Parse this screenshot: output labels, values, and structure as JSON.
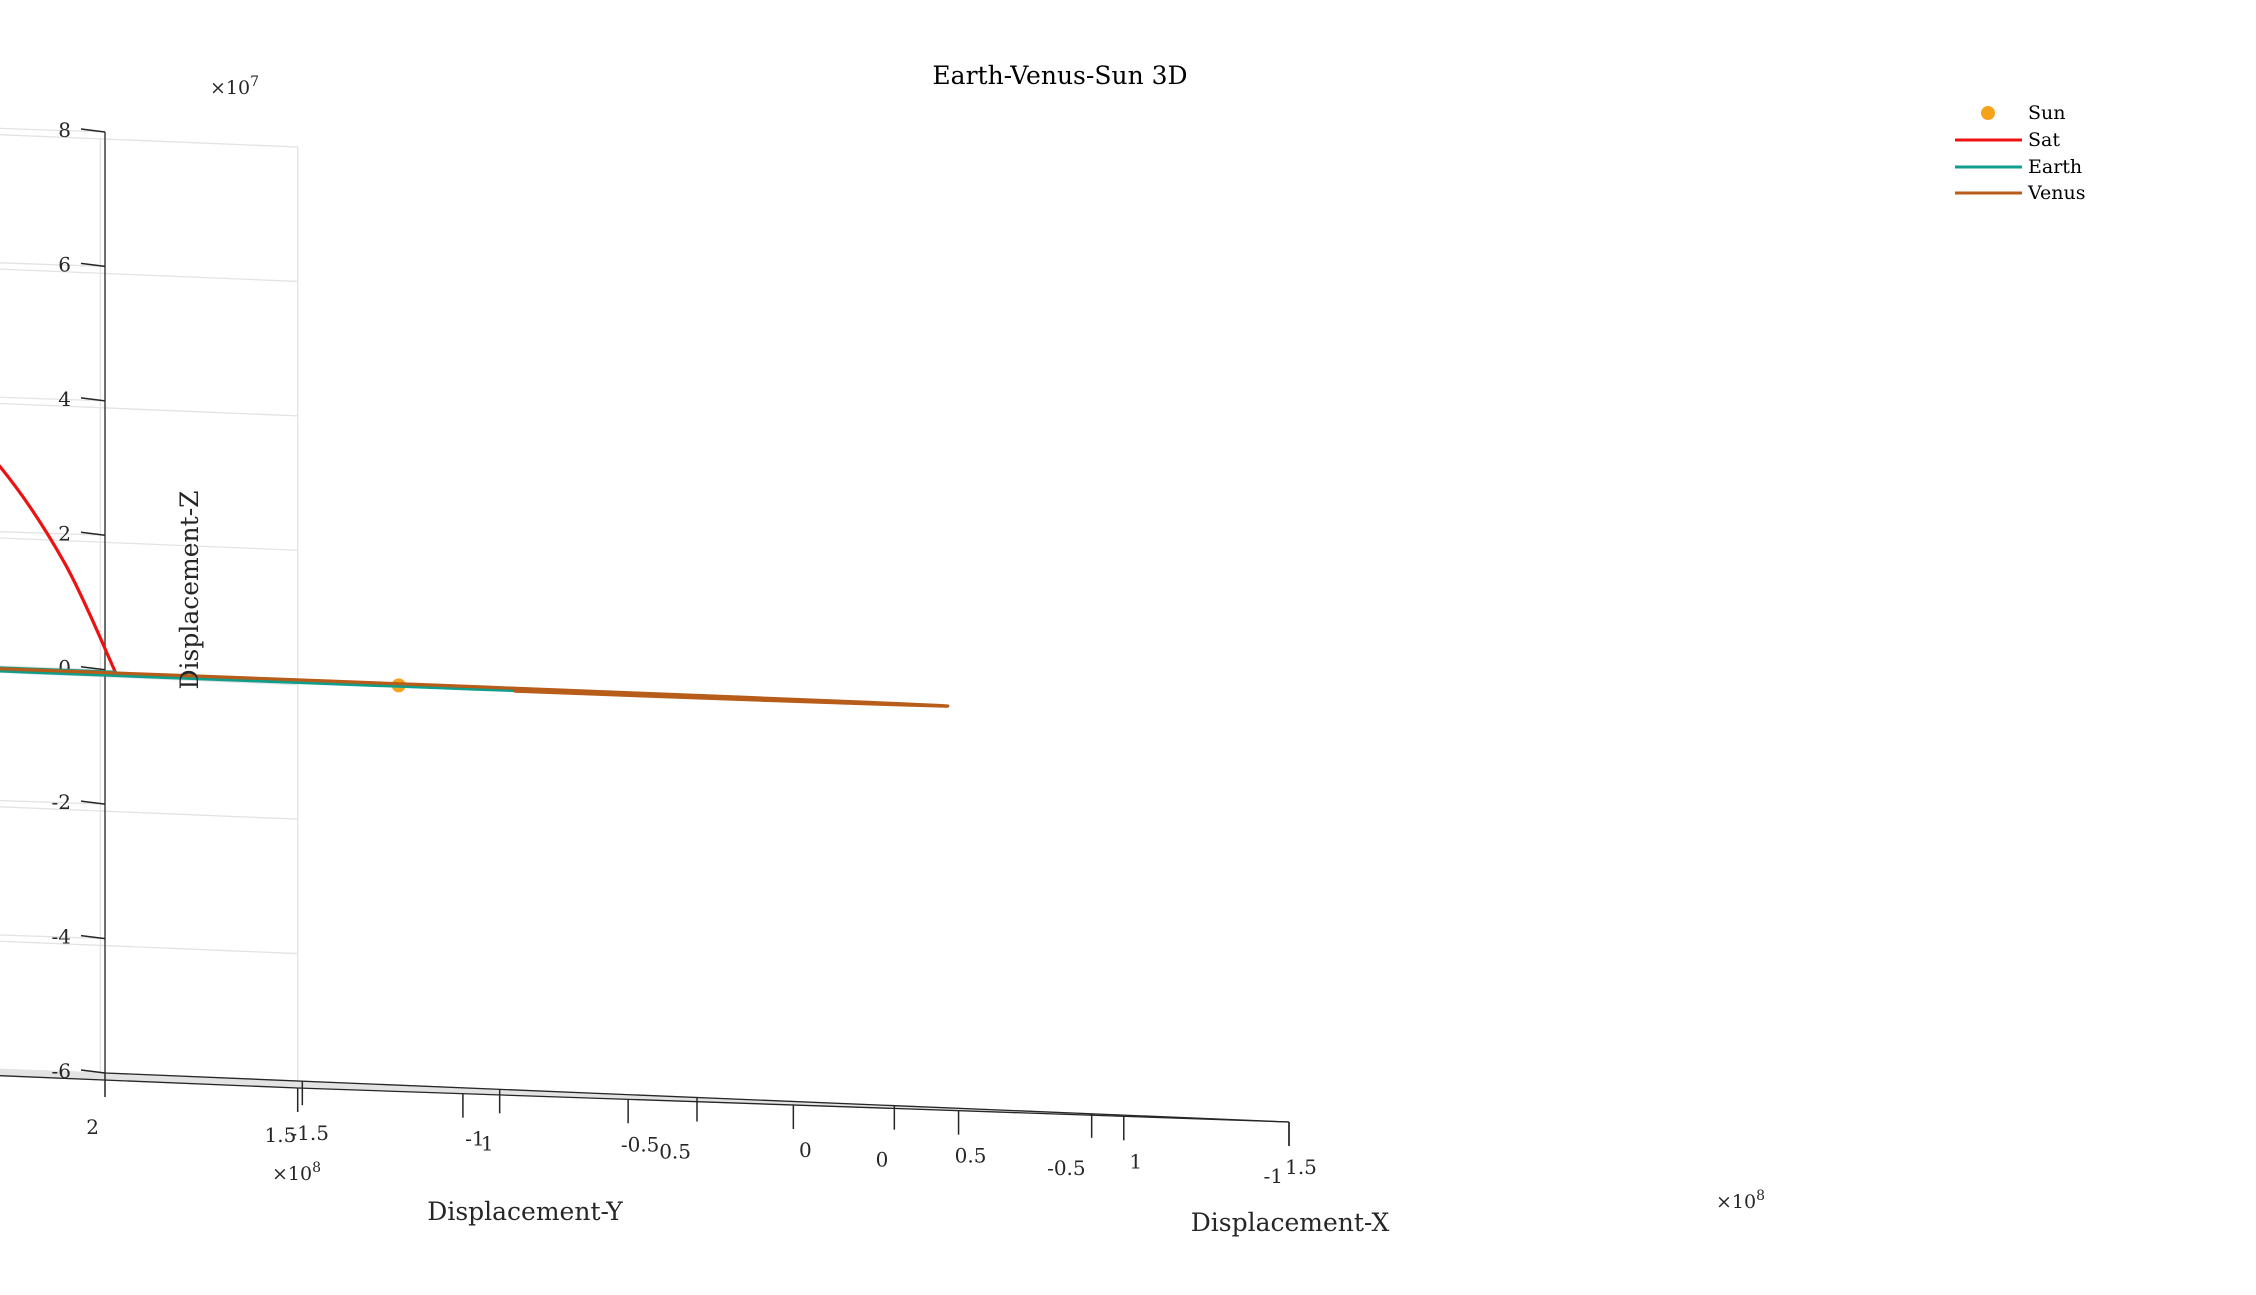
{
  "chart_data": {
    "type": "line",
    "projection": "3d",
    "title": "Earth-Venus-Sun 3D",
    "xlabel": "Displacement-X",
    "ylabel": "Displacement-Y",
    "zlabel": "Displacement-Z",
    "x_exponent_label": "×10",
    "x_exponent_power": "8",
    "y_exponent_label": "×10",
    "y_exponent_power": "8",
    "z_exponent_label": "×10",
    "z_exponent_power": "7",
    "xlim": [
      -1.5,
      1.5
    ],
    "ylim": [
      -1,
      2
    ],
    "zlim": [
      -6,
      8
    ],
    "x_ticks": [
      -1.5,
      -1,
      -0.5,
      0,
      0.5,
      1,
      1.5
    ],
    "x_tick_labels": [
      "-1.5",
      "-1",
      "-0.5",
      "0",
      "0.5",
      "1",
      "1.5"
    ],
    "y_ticks": [
      -1,
      -0.5,
      0,
      0.5,
      1,
      1.5,
      2
    ],
    "y_tick_labels": [
      "-1",
      "-0.5",
      "0",
      "0.5",
      "1",
      "1.5",
      "2"
    ],
    "z_ticks": [
      -6,
      -4,
      -2,
      0,
      2,
      4,
      6,
      8
    ],
    "z_tick_labels": [
      "-6",
      "-4",
      "-2",
      "0",
      "2",
      "4",
      "6",
      "8"
    ],
    "grid": true,
    "legend_position": "top-right",
    "series": [
      {
        "name": "Sun",
        "color": "#f5a31a",
        "marker": "dot",
        "x": [
          0
        ],
        "y": [
          0
        ],
        "z": [
          0
        ]
      },
      {
        "name": "Sat",
        "color": "#ee1111",
        "marker": "none",
        "x": [
          0.6,
          0.565,
          0.5,
          0.4,
          0.3,
          0.2,
          0.1,
          0.02,
          -0.04,
          -0.09
        ],
        "y": [
          1.22,
          1.32,
          1.43,
          1.52,
          1.56,
          1.55,
          1.49,
          1.38,
          1.24,
          1.08
        ],
        "z": [
          0,
          1.6,
          3.0,
          3.95,
          4.4,
          4.2,
          3.5,
          2.4,
          1.2,
          0
        ]
      },
      {
        "name": "Earth",
        "color": "#0f9e8c",
        "marker": "none",
        "x": [
          0.6,
          0.3,
          0,
          -0.3,
          -0.6,
          -0.85,
          -1.02,
          -1.08,
          -1.02,
          -0.85,
          -0.6,
          -0.3,
          0.0
        ],
        "y": [
          1.22,
          1.36,
          1.48,
          1.54,
          1.52,
          1.42,
          1.2,
          0.9,
          0.55,
          0.2,
          -0.12,
          -0.35,
          -0.48
        ],
        "z": [
          0,
          0,
          0,
          0,
          0,
          0,
          0,
          0,
          0,
          0,
          0,
          0,
          0
        ]
      },
      {
        "name": "Venus",
        "color": "#b85c19",
        "marker": "none",
        "x": [
          -0.09,
          0.2,
          0.5,
          0.72,
          0.88,
          1.0,
          1.05,
          0.95,
          0.72,
          0.4,
          0.08,
          -0.2,
          -0.4
        ],
        "y": [
          1.08,
          0.98,
          0.8,
          0.56,
          0.26,
          -0.05,
          -0.32,
          -0.58,
          -0.76,
          -0.86,
          -0.85,
          -0.76,
          -0.63
        ],
        "z": [
          0,
          0,
          0,
          0,
          0,
          0,
          0,
          0,
          0,
          0,
          0,
          0,
          0
        ]
      }
    ]
  }
}
